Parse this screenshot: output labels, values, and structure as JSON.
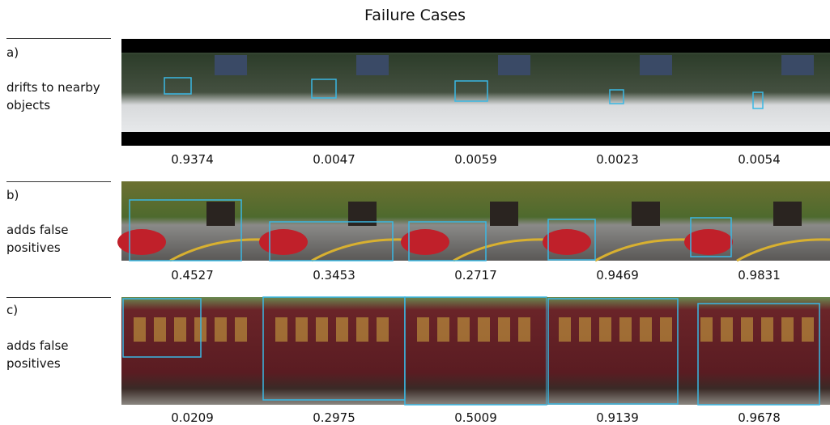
{
  "header": {
    "title": "Failure Cases"
  },
  "rows": [
    {
      "label": "a)",
      "description": "drifts to nearby objects",
      "scores": [
        "0.9374",
        "0.0047",
        "0.0059",
        "0.0023",
        "0.0054"
      ]
    },
    {
      "label": "b)",
      "description": "adds false positives",
      "scores": [
        "0.4527",
        "0.3453",
        "0.2717",
        "0.9469",
        "0.9831"
      ]
    },
    {
      "label": "c)",
      "description": "adds false positives",
      "scores": [
        "0.0209",
        "0.2975",
        "0.5009",
        "0.9139",
        "0.9678"
      ]
    }
  ]
}
